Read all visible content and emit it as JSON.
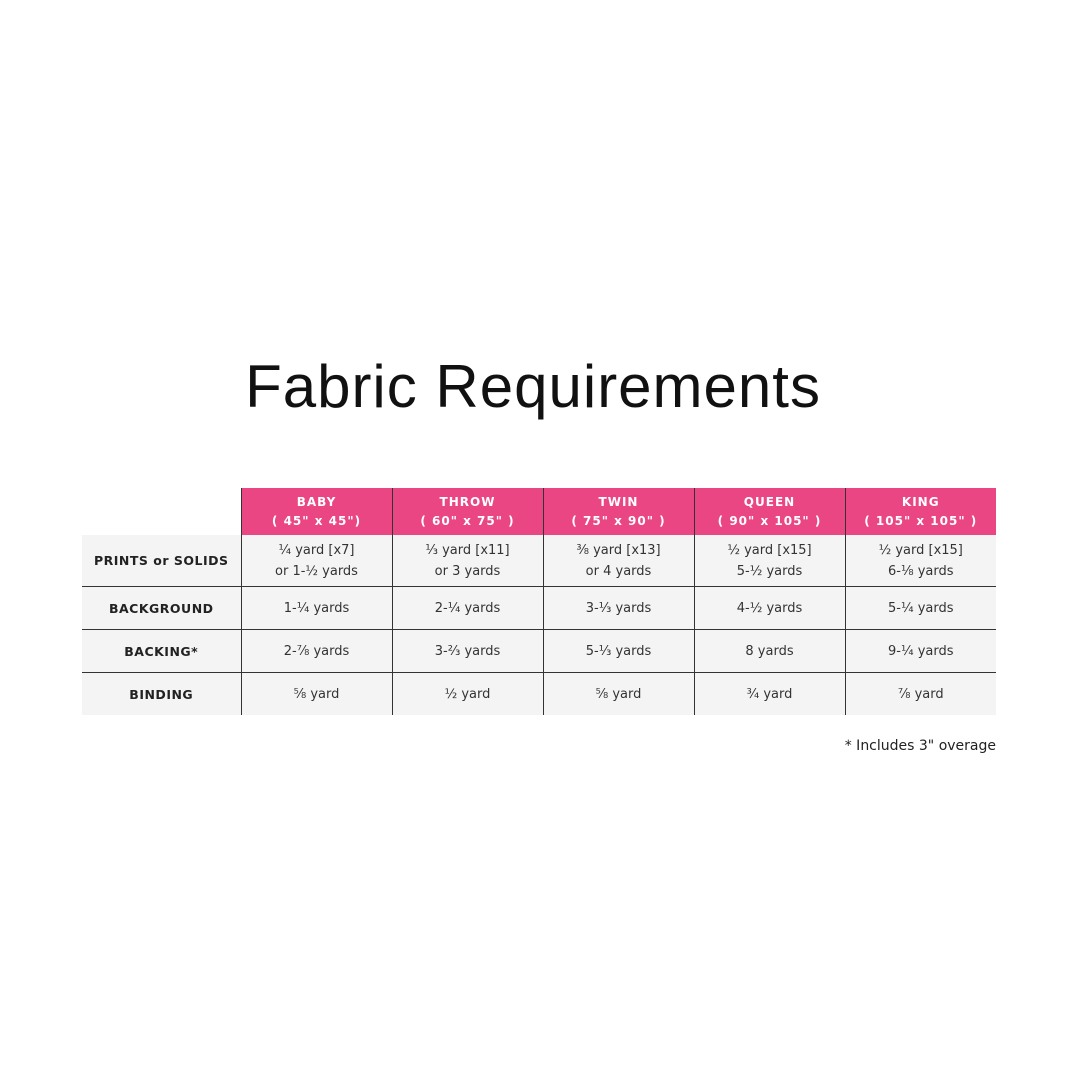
{
  "title": "Fabric Requirements",
  "table": {
    "columns": [
      {
        "name": "BABY",
        "size": "( 45\" x 45\")"
      },
      {
        "name": "THROW",
        "size": "( 60\" x 75\" )"
      },
      {
        "name": "TWIN",
        "size": "( 75\" x 90\" )"
      },
      {
        "name": "QUEEN",
        "size": "( 90\" x 105\" )"
      },
      {
        "name": "KING",
        "size": "( 105\" x 105\" )"
      }
    ],
    "rows": [
      {
        "label": "PRINTS or SOLIDS",
        "cells": [
          [
            "¼ yard [x7]",
            "or 1-½ yards"
          ],
          [
            "⅓ yard [x11]",
            "or 3 yards"
          ],
          [
            "⅜ yard [x13]",
            "or 4 yards"
          ],
          [
            "½ yard [x15]",
            "5-½ yards"
          ],
          [
            "½ yard [x15]",
            "6-⅛ yards"
          ]
        ]
      },
      {
        "label": "BACKGROUND",
        "cells": [
          [
            "1-¼ yards"
          ],
          [
            "2-¼ yards"
          ],
          [
            "3-⅓ yards"
          ],
          [
            "4-½ yards"
          ],
          [
            "5-¼ yards"
          ]
        ]
      },
      {
        "label": "BACKING*",
        "cells": [
          [
            "2-⅞ yards"
          ],
          [
            "3-⅔ yards"
          ],
          [
            "5-⅓ yards"
          ],
          [
            "8 yards"
          ],
          [
            "9-¼ yards"
          ]
        ]
      },
      {
        "label": "BINDING",
        "cells": [
          [
            "⅝ yard"
          ],
          [
            "½ yard"
          ],
          [
            "⅝ yard"
          ],
          [
            "¾ yard"
          ],
          [
            "⅞ yard"
          ]
        ]
      }
    ]
  },
  "footnote": "* Includes 3\" overage",
  "colors": {
    "header": "#e94683",
    "cell_bg": "#f4f4f4"
  }
}
